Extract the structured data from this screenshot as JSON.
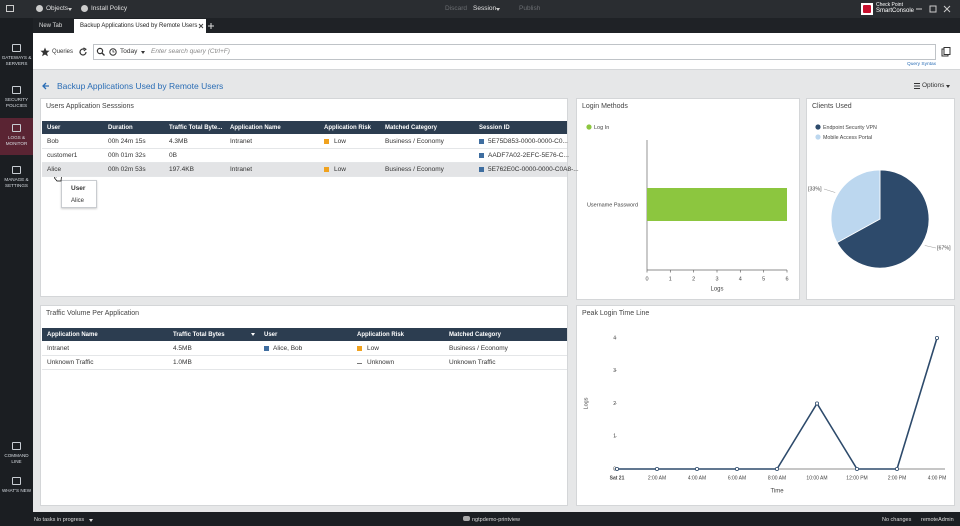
{
  "toolbar": {
    "objects": "Objects",
    "install_policy": "Install Policy",
    "discard": "Discard",
    "session": "Session",
    "publish": "Publish",
    "brand_top": "Check Point",
    "brand_bottom": "SmartConsole"
  },
  "tabs": [
    "New Tab",
    "Backup Applications Used by Remote Users"
  ],
  "sidebar": [
    "GATEWAYS & SERVERS",
    "SECURITY POLICIES",
    "LOGS & MONITOR",
    "MANAGE & SETTINGS"
  ],
  "sidebar_bottom": [
    "COMMAND LINE",
    "WHAT'S NEW"
  ],
  "query_bar": {
    "queries": "Queries",
    "period": "Today",
    "placeholder": "Enter search query (Ctrl+F)",
    "syntax": "Query Syntax"
  },
  "view": {
    "title": "Backup Applications Used by Remote Users",
    "options": "Options"
  },
  "sessions": {
    "title": "Users Application Sesssions",
    "columns": [
      "User",
      "Duration",
      "Traffic Total Byte...",
      "Application Name",
      "Application Risk",
      "Matched Category",
      "Session ID"
    ],
    "rows": [
      [
        "Bob",
        "00h 24m 15s",
        "4.3MB",
        "Intranet",
        "Low",
        "Business / Economy",
        "5E75D853-0000-0000-C0..."
      ],
      [
        "customer1",
        "00h 01m 32s",
        "0B",
        null,
        null,
        null,
        "AADF7A02-2EFC-5E76-C..."
      ],
      [
        "Alice",
        "00h 02m 53s",
        "197.4KB",
        "Intranet",
        "Low",
        "Business / Economy",
        "5E762E0C-0000-0000-C0A8-..."
      ]
    ],
    "tooltip": {
      "title": "User",
      "value": "Alice"
    }
  },
  "traffic": {
    "title": "Traffic Volume Per Application",
    "columns": [
      "Application Name",
      "Traffic Total Bytes",
      "User",
      "Application Risk",
      "Matched Category"
    ],
    "rows": [
      [
        "Intranet",
        "4.5MB",
        "Alice, Bob",
        "Low",
        "Business / Economy"
      ],
      [
        "Unknown Traffic",
        "1.0MB",
        null,
        "Unknown",
        "Unknown Traffic"
      ]
    ]
  },
  "login_methods": {
    "type": "bar",
    "orientation": "horizontal",
    "title": "Login Methods",
    "categories": [
      "Username Password"
    ],
    "series": [
      {
        "name": "Log In",
        "color": "#8cc63f",
        "values": [
          6
        ]
      }
    ],
    "xlim": [
      0,
      6
    ],
    "xticks": [
      0,
      1,
      2,
      3,
      4,
      5,
      6
    ],
    "xlabel": "Logs"
  },
  "clients": {
    "type": "pie",
    "title": "Clients Used",
    "categories": [
      "Endpoint Security VPN",
      "Mobile Access Portal"
    ],
    "values": [
      67,
      33
    ],
    "value_labels": [
      "[67%]",
      "[33%]"
    ],
    "colors": [
      "#2d4a6b",
      "#bcd7ef"
    ]
  },
  "peak": {
    "type": "line",
    "title": "Peak Login Time Line",
    "categories": [
      "Sat 21",
      "2:00 AM",
      "4:00 AM",
      "6:00 AM",
      "8:00 AM",
      "10:00 AM",
      "12:00 PM",
      "2:00 PM",
      "4:00 PM"
    ],
    "values": [
      0,
      0,
      0,
      0,
      0,
      2,
      0,
      0,
      4
    ],
    "color": "#2d4a6b",
    "ylim": [
      0,
      4
    ],
    "yticks": [
      0,
      1,
      2,
      3,
      4
    ],
    "xlabel": "Time",
    "ylabel": "Logs"
  },
  "status": {
    "left": "No tasks in progress",
    "center": "ngtpdemo-printview",
    "changes": "No changes",
    "user": "remoteAdmin"
  }
}
